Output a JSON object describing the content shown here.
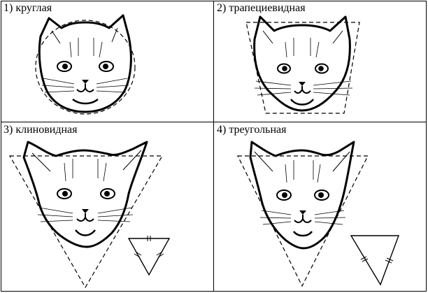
{
  "panels": [
    {
      "number": "1)",
      "caption": "круглая"
    },
    {
      "number": "2)",
      "caption": "трапециевидная"
    },
    {
      "number": "3)",
      "caption": "клиновидная"
    },
    {
      "number": "4)",
      "caption": "треугольная"
    }
  ]
}
